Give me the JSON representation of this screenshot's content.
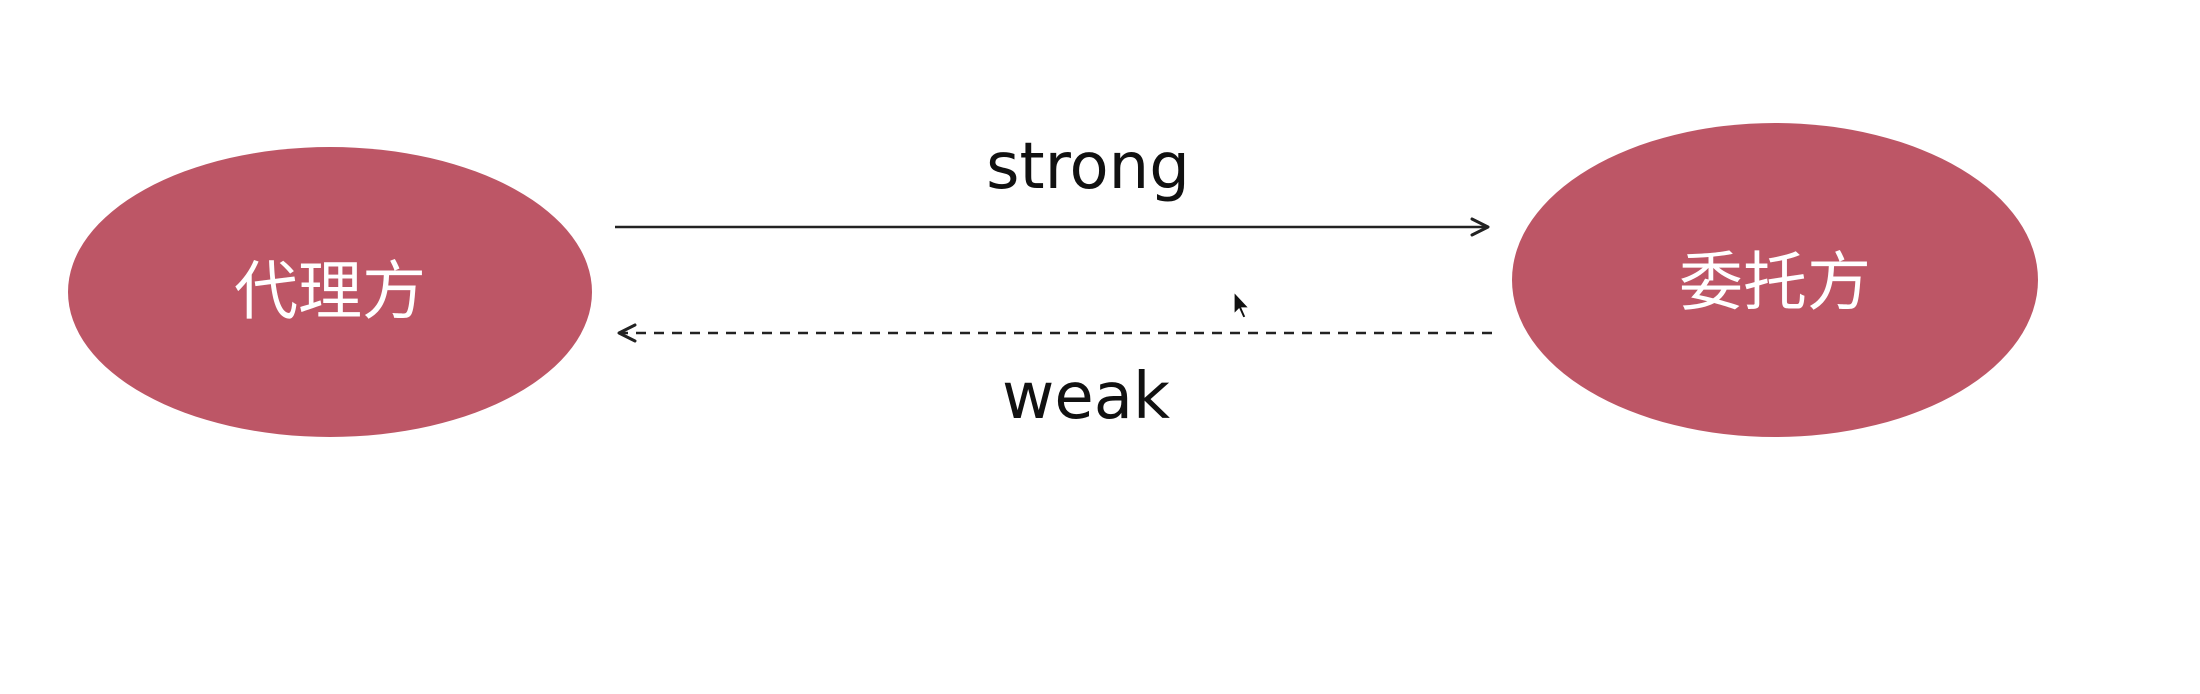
{
  "nodes": {
    "left": {
      "label": "代理方"
    },
    "right": {
      "label": "委托方"
    }
  },
  "edges": {
    "strong": {
      "label": "strong",
      "style": "solid",
      "from": "左",
      "to": "右"
    },
    "weak": {
      "label": "weak",
      "style": "dashed",
      "from": "右",
      "to": "左"
    }
  },
  "colors": {
    "node_fill": "#bd5666",
    "edge_stroke": "#222222",
    "background": "#ffffff"
  },
  "icons": {
    "cursor": "mouse-pointer-icon"
  }
}
